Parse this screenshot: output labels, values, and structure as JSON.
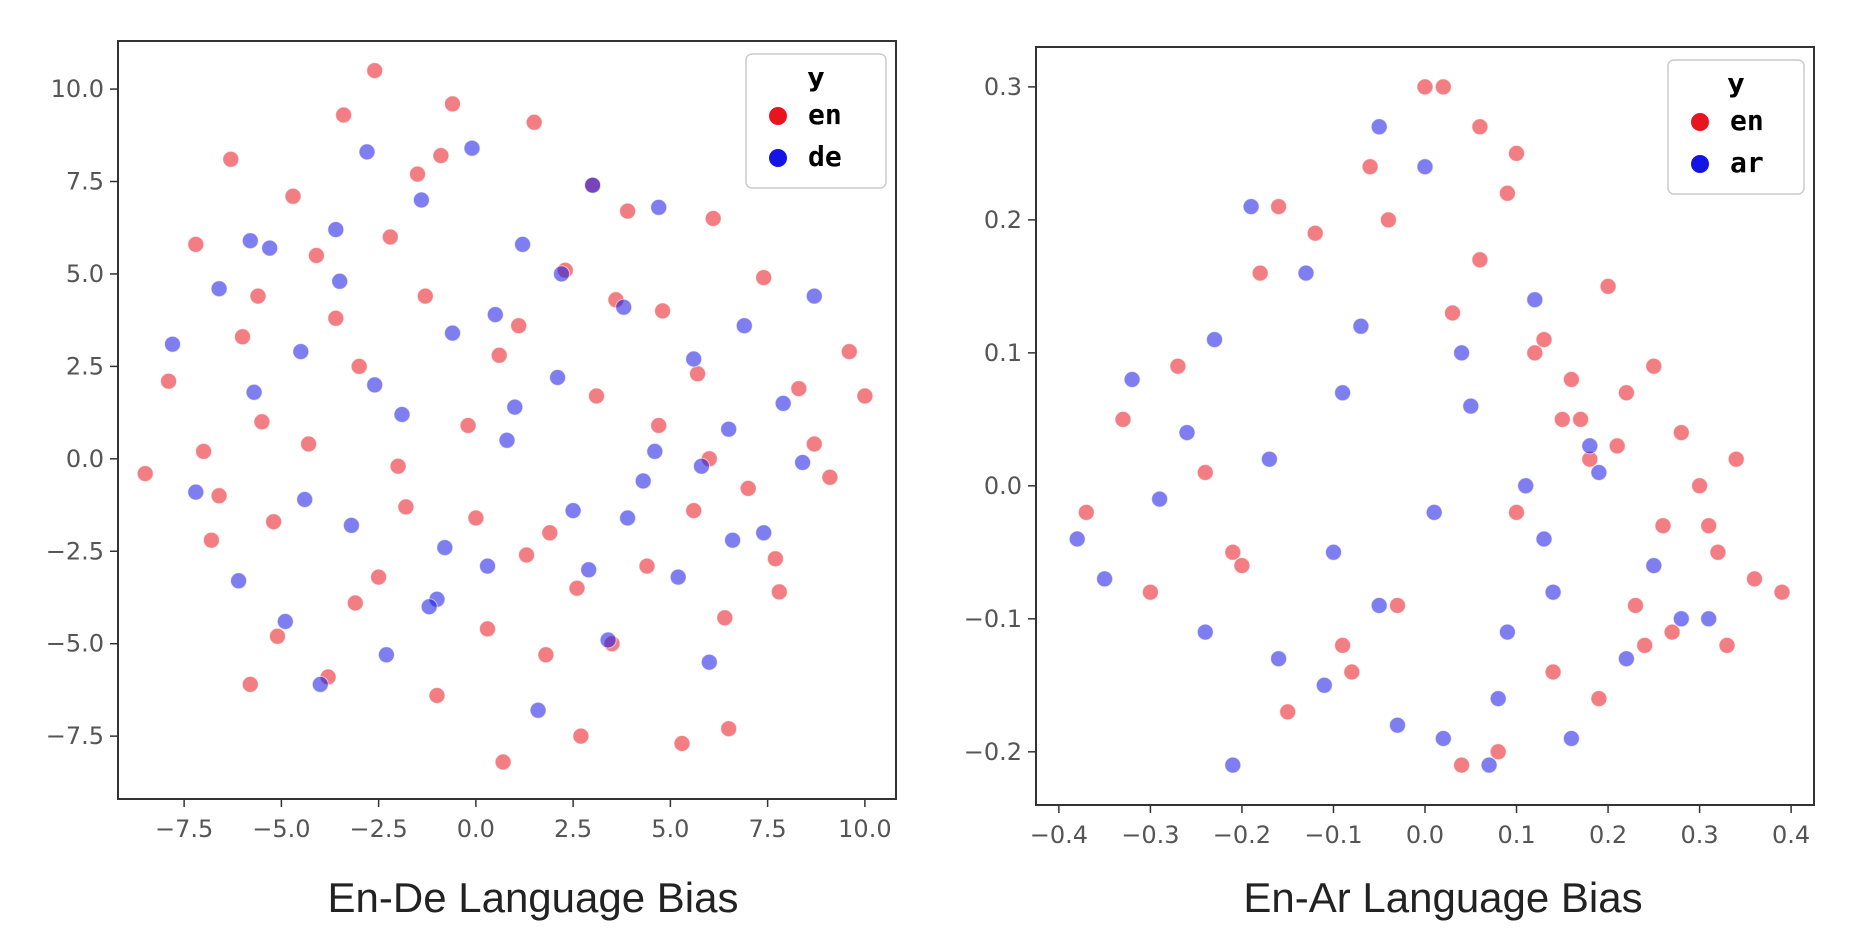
{
  "chart_data": [
    {
      "type": "scatter",
      "caption": "En-De Language Bias",
      "legend_title": "y",
      "legend_placement": "top-right",
      "grid": false,
      "xlim": [
        -9.2,
        10.8
      ],
      "ylim": [
        -9.2,
        11.3
      ],
      "x_ticks": [
        -7.5,
        -5.0,
        -2.5,
        0.0,
        2.5,
        5.0,
        7.5,
        10.0
      ],
      "x_tick_labels": [
        "−7.5",
        "−5.0",
        "−2.5",
        "0.0",
        "2.5",
        "5.0",
        "7.5",
        "10.0"
      ],
      "y_ticks": [
        -7.5,
        -5.0,
        -2.5,
        0.0,
        2.5,
        5.0,
        7.5,
        10.0
      ],
      "y_tick_labels": [
        "−7.5",
        "−5.0",
        "−2.5",
        "0.0",
        "2.5",
        "5.0",
        "7.5",
        "10.0"
      ],
      "series": [
        {
          "name": "en",
          "color": "#e8141e",
          "x": [
            -8.5,
            -7.9,
            -7.2,
            -6.8,
            -6.3,
            -6.0,
            -5.8,
            -5.5,
            -5.1,
            -4.7,
            -4.3,
            -3.8,
            -3.4,
            -3.0,
            -2.6,
            -2.5,
            -2.2,
            -1.8,
            -1.3,
            -1.0,
            -0.6,
            -0.2,
            0.3,
            0.7,
            1.1,
            1.5,
            1.9,
            2.3,
            2.7,
            3.1,
            3.5,
            3.9,
            4.4,
            4.8,
            5.3,
            5.7,
            6.1,
            6.5,
            7.0,
            7.4,
            7.8,
            8.3,
            8.7,
            9.1,
            9.6,
            10.0,
            -6.6,
            -5.2,
            -3.6,
            -1.5,
            0.6,
            2.6,
            4.7,
            6.4,
            -4.1,
            -2.0,
            1.3,
            3.6,
            5.6,
            -7.0,
            7.7,
            -0.9,
            1.8,
            -3.1,
            3.0,
            0.0,
            -5.6,
            6.0
          ],
          "y": [
            -0.4,
            2.1,
            5.8,
            -2.2,
            8.1,
            3.3,
            -6.1,
            1.0,
            -4.8,
            7.1,
            0.4,
            -5.9,
            9.3,
            2.5,
            10.5,
            -3.2,
            6.0,
            -1.3,
            4.4,
            -6.4,
            9.6,
            0.9,
            -4.6,
            -8.2,
            3.6,
            9.1,
            -2.0,
            5.1,
            -7.5,
            1.7,
            -5.0,
            6.7,
            -2.9,
            4.0,
            -7.7,
            2.3,
            6.5,
            -7.3,
            -0.8,
            4.9,
            -3.6,
            1.9,
            0.4,
            -0.5,
            2.9,
            1.7,
            -1.0,
            -1.7,
            3.8,
            7.7,
            2.8,
            -3.5,
            0.9,
            -4.3,
            5.5,
            -0.2,
            -2.6,
            4.3,
            -1.4,
            0.2,
            -2.7,
            8.2,
            -5.3,
            -3.9,
            7.4,
            -1.6,
            4.4,
            0.0
          ]
        },
        {
          "name": "de",
          "color": "#1414e6",
          "x": [
            -7.8,
            -7.2,
            -6.6,
            -6.1,
            -5.7,
            -5.3,
            -4.9,
            -4.5,
            -4.0,
            -3.6,
            -3.2,
            -2.8,
            -2.3,
            -1.9,
            -1.4,
            -1.0,
            -0.6,
            -0.1,
            0.3,
            0.8,
            1.2,
            1.6,
            2.1,
            2.5,
            3.0,
            3.4,
            3.8,
            4.3,
            4.7,
            5.2,
            5.6,
            6.0,
            6.5,
            6.9,
            7.4,
            7.9,
            8.4,
            8.7,
            -4.4,
            -2.6,
            -0.8,
            1.0,
            2.9,
            4.6,
            -3.5,
            -1.2,
            0.5,
            2.2,
            3.9,
            5.8,
            -5.8,
            6.6
          ],
          "y": [
            3.1,
            -0.9,
            4.6,
            -3.3,
            1.8,
            5.7,
            -4.4,
            2.9,
            -6.1,
            6.2,
            -1.8,
            8.3,
            -5.3,
            1.2,
            7.0,
            -3.8,
            3.4,
            8.4,
            -2.9,
            0.5,
            5.8,
            -6.8,
            2.2,
            -1.4,
            7.4,
            -4.9,
            4.1,
            -0.6,
            6.8,
            -3.2,
            2.7,
            -5.5,
            0.8,
            3.6,
            -2.0,
            1.5,
            -0.1,
            4.4,
            -1.1,
            2.0,
            -2.4,
            1.4,
            -3.0,
            0.2,
            4.8,
            -4.0,
            3.9,
            5.0,
            -1.6,
            -0.2,
            5.9,
            -2.2
          ]
        }
      ]
    },
    {
      "type": "scatter",
      "caption": "En-Ar Language Bias",
      "legend_title": "y",
      "legend_placement": "top-right",
      "grid": false,
      "xlim": [
        -0.425,
        0.425
      ],
      "ylim": [
        -0.24,
        0.33
      ],
      "x_ticks": [
        -0.4,
        -0.3,
        -0.2,
        -0.1,
        0.0,
        0.1,
        0.2,
        0.3,
        0.4
      ],
      "x_tick_labels": [
        "−0.4",
        "−0.3",
        "−0.2",
        "−0.1",
        "0.0",
        "0.1",
        "0.2",
        "0.3",
        "0.4"
      ],
      "y_ticks": [
        -0.2,
        -0.1,
        0.0,
        0.1,
        0.2,
        0.3
      ],
      "y_tick_labels": [
        "−0.2",
        "−0.1",
        "0.0",
        "0.1",
        "0.2",
        "0.3"
      ],
      "series": [
        {
          "name": "en",
          "color": "#e8141e",
          "x": [
            -0.37,
            -0.33,
            -0.3,
            -0.27,
            -0.24,
            -0.21,
            -0.18,
            -0.15,
            -0.12,
            -0.09,
            -0.06,
            -0.03,
            0.0,
            0.02,
            0.04,
            0.06,
            0.08,
            0.1,
            0.12,
            0.14,
            0.16,
            0.18,
            0.2,
            0.22,
            0.24,
            0.26,
            0.28,
            0.3,
            0.32,
            0.34,
            0.36,
            0.39,
            -0.04,
            0.03,
            0.1,
            0.15,
            0.21,
            0.27,
            0.33,
            -0.16,
            -0.08,
            0.06,
            0.13,
            0.19,
            0.25,
            0.31,
            -0.2,
            0.09,
            0.17,
            0.23
          ],
          "y": [
            -0.02,
            0.05,
            -0.08,
            0.09,
            0.01,
            -0.05,
            0.16,
            -0.17,
            0.19,
            -0.12,
            0.24,
            -0.09,
            0.3,
            0.3,
            -0.21,
            0.27,
            -0.2,
            0.25,
            0.1,
            -0.14,
            0.08,
            0.02,
            0.15,
            0.07,
            -0.12,
            -0.03,
            0.04,
            0.0,
            -0.05,
            0.02,
            -0.07,
            -0.08,
            0.2,
            0.13,
            -0.02,
            0.05,
            0.03,
            -0.11,
            -0.12,
            0.21,
            -0.14,
            0.17,
            0.11,
            -0.16,
            0.09,
            -0.03,
            -0.06,
            0.22,
            0.05,
            -0.09
          ]
        },
        {
          "name": "ar",
          "color": "#1414e6",
          "x": [
            -0.38,
            -0.35,
            -0.32,
            -0.29,
            -0.26,
            -0.23,
            -0.21,
            -0.19,
            -0.16,
            -0.13,
            -0.1,
            -0.07,
            -0.05,
            -0.03,
            0.0,
            0.02,
            0.05,
            0.07,
            0.09,
            0.11,
            0.14,
            0.16,
            0.19,
            0.22,
            0.25,
            0.28,
            0.31,
            -0.09,
            -0.11,
            0.01,
            0.04,
            -0.17,
            -0.24,
            0.12,
            0.18,
            -0.05,
            0.08,
            0.13
          ],
          "y": [
            -0.04,
            -0.07,
            0.08,
            -0.01,
            0.04,
            0.11,
            -0.21,
            0.21,
            -0.13,
            0.16,
            -0.05,
            0.12,
            0.27,
            -0.18,
            0.24,
            -0.19,
            0.06,
            -0.21,
            -0.11,
            0.0,
            -0.08,
            -0.19,
            0.01,
            -0.13,
            -0.06,
            -0.1,
            -0.1,
            0.07,
            -0.15,
            -0.02,
            0.1,
            0.02,
            -0.11,
            0.14,
            0.03,
            -0.09,
            -0.16,
            -0.04
          ]
        }
      ]
    }
  ]
}
